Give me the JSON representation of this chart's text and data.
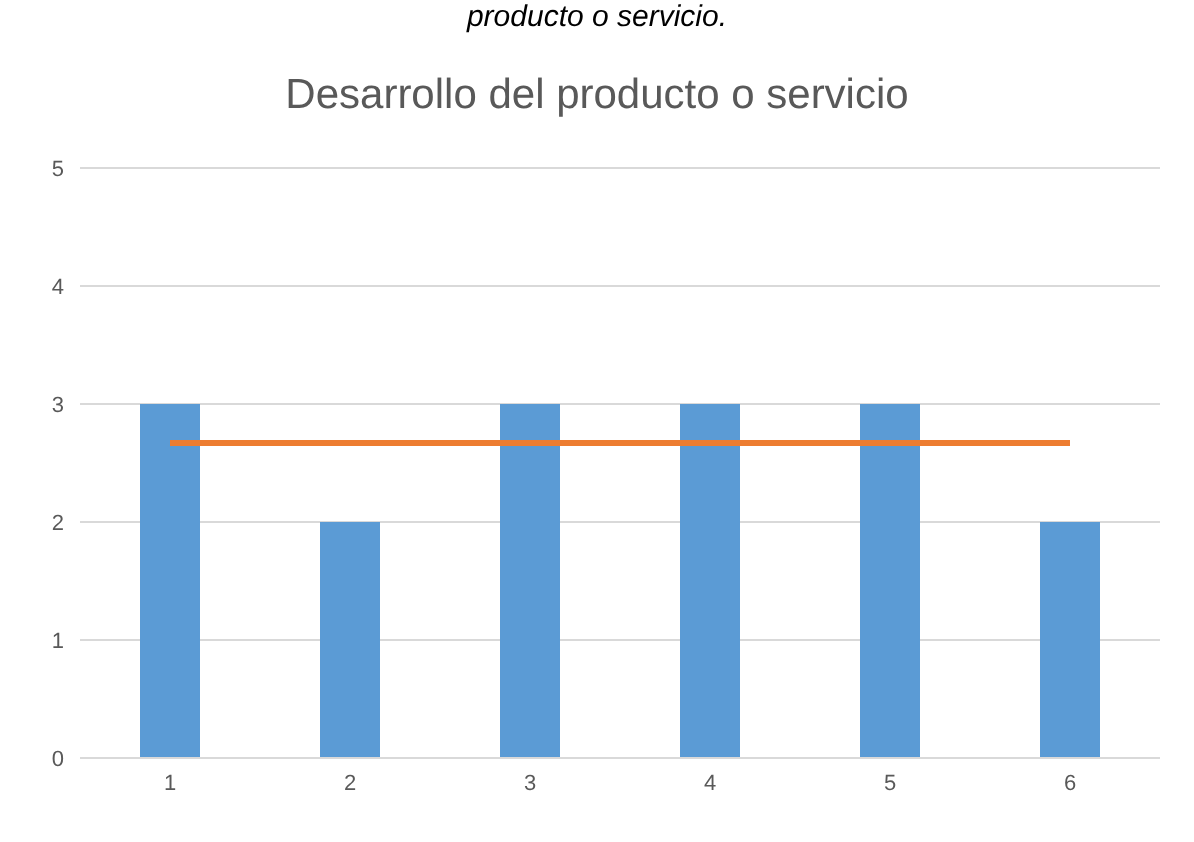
{
  "chart_data": {
    "type": "bar",
    "title": "Desarrollo del producto o servicio",
    "annotations": [
      "producto o servicio."
    ],
    "categories": [
      "1",
      "2",
      "3",
      "4",
      "5",
      "6"
    ],
    "series": [
      {
        "color": "#5b9bd5",
        "values": [
          3,
          2,
          3,
          3,
          3,
          2
        ]
      },
      {
        "type": "line",
        "color": "#ed7d31",
        "values": [
          2.67,
          2.67,
          2.67,
          2.67,
          2.67,
          2.67
        ]
      }
    ],
    "ylim": [
      0,
      5
    ],
    "yticks": [
      0,
      1,
      2,
      3,
      4,
      5
    ],
    "grid": "y",
    "legend": false
  }
}
